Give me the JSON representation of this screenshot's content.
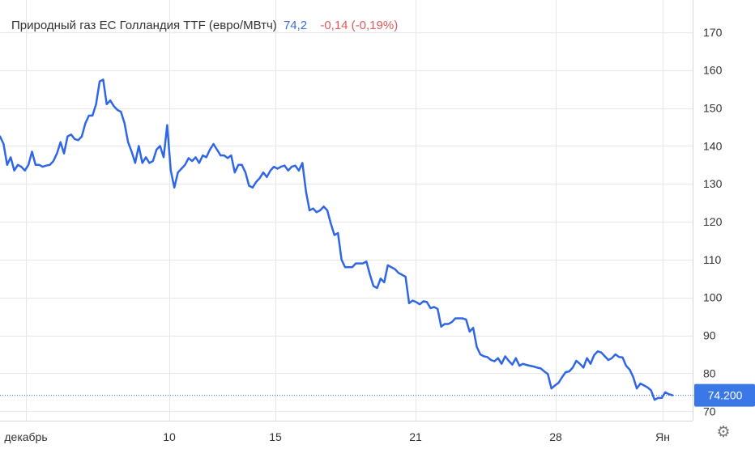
{
  "legend": {
    "name": "Природный газ ЕС Голландия TTF (евро/МВтч)",
    "last": "74,2",
    "change": "-0,14 (-0,19%)"
  },
  "price_badge": "74.200",
  "icons": {
    "settings": "gear-icon"
  },
  "colors": {
    "line": "#2f66e6",
    "badge": "#3a78e8",
    "negative": "#e05a5a",
    "grid": "#e6e6e6"
  },
  "chart_data": {
    "type": "line",
    "title": "Природный газ ЕС Голландия TTF (евро/МВтч)",
    "x_ticks": [
      "декабрь",
      "10",
      "15",
      "21",
      "28",
      "Ян"
    ],
    "y_ticks": [
      70,
      80,
      90,
      100,
      110,
      120,
      130,
      140,
      150,
      160,
      170
    ],
    "ylim": [
      67.5,
      178.5
    ],
    "grid": true,
    "last_price_line": 74.2,
    "series": [
      {
        "values": [
          142.5,
          140.5,
          135,
          137,
          133.5,
          135,
          134.5,
          133.5,
          135,
          138.5,
          135,
          135,
          134.5,
          134.8,
          135,
          136,
          138,
          141,
          138,
          142.5,
          143,
          141.8,
          141.5,
          142.5,
          146,
          148,
          148,
          151,
          157,
          157.5,
          151,
          152,
          150.5,
          149.5,
          149,
          146,
          141,
          138.5,
          135.5,
          140,
          135.5,
          137,
          135.5,
          136,
          139,
          140,
          137,
          145.5,
          133.5,
          129,
          133,
          134,
          135,
          136.8,
          136,
          137,
          135.5,
          137.5,
          137,
          139,
          140.5,
          139,
          137.5,
          137.5,
          136.8,
          137.5,
          133,
          135,
          135,
          133,
          129.5,
          129,
          130.5,
          131.5,
          133,
          131.8,
          133.5,
          134.5,
          134,
          134.5,
          134.8,
          133.5,
          134.5,
          134.8,
          133.5,
          135.5,
          128,
          123,
          123.5,
          122.5,
          123,
          124,
          123,
          119.5,
          116.5,
          117,
          110,
          108,
          108,
          108,
          109,
          109,
          109,
          109.5,
          106,
          103,
          102.5,
          105,
          104,
          108.5,
          108,
          107.5,
          106.5,
          106,
          105.5,
          98.5,
          99.2,
          98.8,
          98.2,
          99,
          98.8,
          97.2,
          97.5,
          97,
          92.3,
          93,
          93,
          93.5,
          94.5,
          94.5,
          94.5,
          94.2,
          91,
          92,
          87,
          85,
          84.5,
          84.3,
          83.5,
          83.2,
          84,
          82.5,
          84.5,
          83.3,
          82.3,
          84,
          82,
          82.5,
          82.2,
          82,
          81.8,
          81.5,
          81.3,
          80.5,
          79.8,
          76,
          76.8,
          77.5,
          79,
          80.3,
          80.5,
          81.5,
          83.3,
          82.5,
          81.5,
          84,
          82.5,
          84.8,
          85.8,
          85.5,
          84.5,
          83.5,
          84,
          85,
          84.3,
          84.2,
          82,
          81,
          79,
          76,
          77.3,
          76.8,
          76.3,
          75.5,
          73,
          73.5,
          73.5,
          75,
          74.5,
          74.2
        ]
      }
    ]
  }
}
